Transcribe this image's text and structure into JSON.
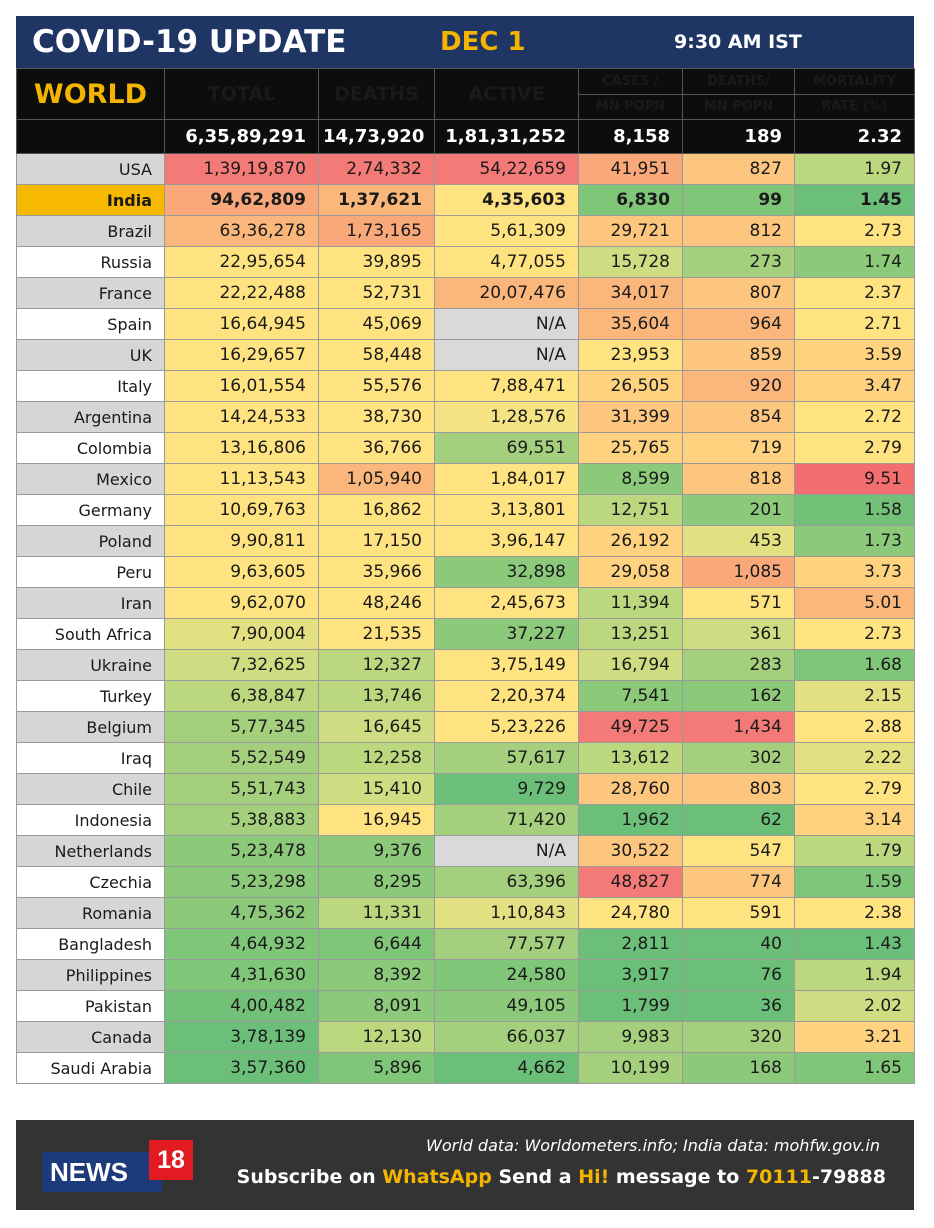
{
  "header": {
    "title": "COVID-19 UPDATE",
    "date": "DEC 1",
    "time": "9:30 AM IST"
  },
  "table": {
    "world_label": "WORLD",
    "columns": {
      "total": "TOTAL",
      "deaths": "DEATHS",
      "active": "ACTIVE",
      "cases_mn_1": "CASES /",
      "cases_mn_2": "MN POPN",
      "deaths_mn_1": "DEATHS/",
      "deaths_mn_2": "MN POPN",
      "mortality_1": "MORTALITY",
      "mortality_2": "RATE (%)"
    },
    "world_totals": {
      "total": "6,35,89,291",
      "deaths": "14,73,920",
      "active": "1,81,31,252",
      "cases_mn": "8,158",
      "deaths_mn": "189",
      "mortality": "2.32"
    }
  },
  "chart_data": {
    "type": "table",
    "title": "COVID-19 UPDATE",
    "columns": [
      "TOTAL",
      "DEATHS",
      "ACTIVE",
      "CASES / MN POPN",
      "DEATHS/ MN POPN",
      "MORTALITY RATE (%)"
    ],
    "rows": [
      {
        "country": "USA",
        "total": "1,39,19,870",
        "deaths": "2,74,332",
        "active": "54,22,659",
        "cases_mn": "41,951",
        "deaths_mn": "827",
        "mortality": "1.97",
        "colors": [
          "#f37a76",
          "#f37a76",
          "#f37a76",
          "#f9a87a",
          "#fcc67e",
          "#bcd87f"
        ]
      },
      {
        "country": "India",
        "total": "94,62,809",
        "deaths": "1,37,621",
        "active": "4,35,603",
        "cases_mn": "6,830",
        "deaths_mn": "99",
        "mortality": "1.45",
        "colors": [
          "#f9a87a",
          "#fbb67c",
          "#ffe380",
          "#80c679",
          "#80c679",
          "#6cbf78"
        ]
      },
      {
        "country": "Brazil",
        "total": "63,36,278",
        "deaths": "1,73,165",
        "active": "5,61,309",
        "cases_mn": "29,721",
        "deaths_mn": "812",
        "mortality": "2.73",
        "colors": [
          "#fbb67c",
          "#f9a87a",
          "#ffe380",
          "#fcc67e",
          "#fcc67e",
          "#ffe380"
        ]
      },
      {
        "country": "Russia",
        "total": "22,95,654",
        "deaths": "39,895",
        "active": "4,77,055",
        "cases_mn": "15,728",
        "deaths_mn": "273",
        "mortality": "1.74",
        "colors": [
          "#ffe380",
          "#ffe380",
          "#ffe380",
          "#cfdc81",
          "#a4d07e",
          "#8cc97a"
        ]
      },
      {
        "country": "France",
        "total": "22,22,488",
        "deaths": "52,731",
        "active": "20,07,476",
        "cases_mn": "34,017",
        "deaths_mn": "807",
        "mortality": "2.37",
        "colors": [
          "#ffe380",
          "#ffe380",
          "#fbb67c",
          "#fbb67c",
          "#fcc67e",
          "#ffe380"
        ]
      },
      {
        "country": "Spain",
        "total": "16,64,945",
        "deaths": "45,069",
        "active": "N/A",
        "cases_mn": "35,604",
        "deaths_mn": "964",
        "mortality": "2.71",
        "colors": [
          "#ffe380",
          "#ffe380",
          "#d9d9d9",
          "#fbb67c",
          "#fbb67c",
          "#ffe380"
        ]
      },
      {
        "country": "UK",
        "total": "16,29,657",
        "deaths": "58,448",
        "active": "N/A",
        "cases_mn": "23,953",
        "deaths_mn": "859",
        "mortality": "3.59",
        "colors": [
          "#ffe380",
          "#ffe380",
          "#d9d9d9",
          "#ffe380",
          "#fcc67e",
          "#fed27f"
        ]
      },
      {
        "country": "Italy",
        "total": "16,01,554",
        "deaths": "55,576",
        "active": "7,88,471",
        "cases_mn": "26,505",
        "deaths_mn": "920",
        "mortality": "3.47",
        "colors": [
          "#ffe380",
          "#ffe380",
          "#ffe380",
          "#fed27f",
          "#fbb67c",
          "#fed27f"
        ]
      },
      {
        "country": "Argentina",
        "total": "14,24,533",
        "deaths": "38,730",
        "active": "1,28,576",
        "cases_mn": "31,399",
        "deaths_mn": "854",
        "mortality": "2.72",
        "colors": [
          "#ffe380",
          "#ffe380",
          "#f5e383",
          "#fcc67e",
          "#fcc67e",
          "#ffe380"
        ]
      },
      {
        "country": "Colombia",
        "total": "13,16,806",
        "deaths": "36,766",
        "active": "69,551",
        "cases_mn": "25,765",
        "deaths_mn": "719",
        "mortality": "2.79",
        "colors": [
          "#ffe380",
          "#ffe380",
          "#a4d07e",
          "#fed27f",
          "#fed27f",
          "#ffe380"
        ]
      },
      {
        "country": "Mexico",
        "total": "11,13,543",
        "deaths": "1,05,940",
        "active": "1,84,017",
        "cases_mn": "8,599",
        "deaths_mn": "818",
        "mortality": "9.51",
        "colors": [
          "#ffe380",
          "#fbb67c",
          "#ffe380",
          "#8cc97a",
          "#fcc67e",
          "#f36e6e"
        ]
      },
      {
        "country": "Germany",
        "total": "10,69,763",
        "deaths": "16,862",
        "active": "3,13,801",
        "cases_mn": "12,751",
        "deaths_mn": "201",
        "mortality": "1.58",
        "colors": [
          "#ffe380",
          "#ffe380",
          "#ffe380",
          "#bcd87f",
          "#8cc97a",
          "#73c178"
        ]
      },
      {
        "country": "Poland",
        "total": "9,90,811",
        "deaths": "17,150",
        "active": "3,96,147",
        "cases_mn": "26,192",
        "deaths_mn": "453",
        "mortality": "1.73",
        "colors": [
          "#ffe380",
          "#ffe380",
          "#ffe380",
          "#fed27f",
          "#e3e082",
          "#8cc97a"
        ]
      },
      {
        "country": "Peru",
        "total": "9,63,605",
        "deaths": "35,966",
        "active": "32,898",
        "cases_mn": "29,058",
        "deaths_mn": "1,085",
        "mortality": "3.73",
        "colors": [
          "#ffe380",
          "#ffe380",
          "#8cc97a",
          "#fed27f",
          "#f9a87a",
          "#fed27f"
        ]
      },
      {
        "country": "Iran",
        "total": "9,62,070",
        "deaths": "48,246",
        "active": "2,45,673",
        "cases_mn": "11,394",
        "deaths_mn": "571",
        "mortality": "5.01",
        "colors": [
          "#ffe380",
          "#ffe380",
          "#ffe380",
          "#bcd87f",
          "#ffe380",
          "#fbb67c"
        ]
      },
      {
        "country": "South Africa",
        "total": "7,90,004",
        "deaths": "21,535",
        "active": "37,227",
        "cases_mn": "13,251",
        "deaths_mn": "361",
        "mortality": "2.73",
        "colors": [
          "#e3e082",
          "#ffe380",
          "#8cc97a",
          "#bcd87f",
          "#cfdc81",
          "#ffe380"
        ]
      },
      {
        "country": "Ukraine",
        "total": "7,32,625",
        "deaths": "12,327",
        "active": "3,75,149",
        "cases_mn": "16,794",
        "deaths_mn": "283",
        "mortality": "1.68",
        "colors": [
          "#cfdc81",
          "#bcd87f",
          "#ffe380",
          "#cfdc81",
          "#a4d07e",
          "#80c679"
        ]
      },
      {
        "country": "Turkey",
        "total": "6,38,847",
        "deaths": "13,746",
        "active": "2,20,374",
        "cases_mn": "7,541",
        "deaths_mn": "162",
        "mortality": "2.15",
        "colors": [
          "#bcd87f",
          "#bcd87f",
          "#ffe380",
          "#8cc97a",
          "#8cc97a",
          "#e3e082"
        ]
      },
      {
        "country": "Belgium",
        "total": "5,77,345",
        "deaths": "16,645",
        "active": "5,23,226",
        "cases_mn": "49,725",
        "deaths_mn": "1,434",
        "mortality": "2.88",
        "colors": [
          "#a4d07e",
          "#cfdc81",
          "#ffe380",
          "#f37a76",
          "#f37a76",
          "#ffe380"
        ]
      },
      {
        "country": "Iraq",
        "total": "5,52,549",
        "deaths": "12,258",
        "active": "57,617",
        "cases_mn": "13,612",
        "deaths_mn": "302",
        "mortality": "2.22",
        "colors": [
          "#a4d07e",
          "#bcd87f",
          "#a4d07e",
          "#bcd87f",
          "#a4d07e",
          "#e3e082"
        ]
      },
      {
        "country": "Chile",
        "total": "5,51,743",
        "deaths": "15,410",
        "active": "9,729",
        "cases_mn": "28,760",
        "deaths_mn": "803",
        "mortality": "2.79",
        "colors": [
          "#a4d07e",
          "#cfdc81",
          "#6cbf78",
          "#fcc67e",
          "#fcc67e",
          "#ffe380"
        ]
      },
      {
        "country": "Indonesia",
        "total": "5,38,883",
        "deaths": "16,945",
        "active": "71,420",
        "cases_mn": "1,962",
        "deaths_mn": "62",
        "mortality": "3.14",
        "colors": [
          "#a4d07e",
          "#ffe380",
          "#a4d07e",
          "#6cbf78",
          "#6cbf78",
          "#fed27f"
        ]
      },
      {
        "country": "Netherlands",
        "total": "5,23,478",
        "deaths": "9,376",
        "active": "N/A",
        "cases_mn": "30,522",
        "deaths_mn": "547",
        "mortality": "1.79",
        "colors": [
          "#8cc97a",
          "#8cc97a",
          "#d9d9d9",
          "#fcc67e",
          "#ffe380",
          "#bcd87f"
        ]
      },
      {
        "country": "Czechia",
        "total": "5,23,298",
        "deaths": "8,295",
        "active": "63,396",
        "cases_mn": "48,827",
        "deaths_mn": "774",
        "mortality": "1.59",
        "colors": [
          "#8cc97a",
          "#8cc97a",
          "#a4d07e",
          "#f37a76",
          "#fcc67e",
          "#80c679"
        ]
      },
      {
        "country": "Romania",
        "total": "4,75,362",
        "deaths": "11,331",
        "active": "1,10,843",
        "cases_mn": "24,780",
        "deaths_mn": "591",
        "mortality": "2.38",
        "colors": [
          "#8cc97a",
          "#bcd87f",
          "#e3e082",
          "#ffe380",
          "#ffe380",
          "#ffe380"
        ]
      },
      {
        "country": "Bangladesh",
        "total": "4,64,932",
        "deaths": "6,644",
        "active": "77,577",
        "cases_mn": "2,811",
        "deaths_mn": "40",
        "mortality": "1.43",
        "colors": [
          "#80c679",
          "#80c679",
          "#a4d07e",
          "#6cbf78",
          "#6cbf78",
          "#6cbf78"
        ]
      },
      {
        "country": "Philippines",
        "total": "4,31,630",
        "deaths": "8,392",
        "active": "24,580",
        "cases_mn": "3,917",
        "deaths_mn": "76",
        "mortality": "1.94",
        "colors": [
          "#80c679",
          "#8cc97a",
          "#80c679",
          "#6cbf78",
          "#6cbf78",
          "#bcd87f"
        ]
      },
      {
        "country": "Pakistan",
        "total": "4,00,482",
        "deaths": "8,091",
        "active": "49,105",
        "cases_mn": "1,799",
        "deaths_mn": "36",
        "mortality": "2.02",
        "colors": [
          "#73c178",
          "#8cc97a",
          "#8cc97a",
          "#6cbf78",
          "#6cbf78",
          "#cfdc81"
        ]
      },
      {
        "country": "Canada",
        "total": "3,78,139",
        "deaths": "12,130",
        "active": "66,037",
        "cases_mn": "9,983",
        "deaths_mn": "320",
        "mortality": "3.21",
        "colors": [
          "#6cbf78",
          "#bcd87f",
          "#a4d07e",
          "#a4d07e",
          "#a4d07e",
          "#fed27f"
        ]
      },
      {
        "country": "Saudi Arabia",
        "total": "3,57,360",
        "deaths": "5,896",
        "active": "4,662",
        "cases_mn": "10,199",
        "deaths_mn": "168",
        "mortality": "1.65",
        "colors": [
          "#6cbf78",
          "#80c679",
          "#6cbf78",
          "#a4d07e",
          "#8cc97a",
          "#80c679"
        ]
      }
    ]
  },
  "footer": {
    "logo_text": "NEWS",
    "logo_number": "18",
    "source": "World data: Worldometers.info; India data: mohfw.gov.in",
    "subscribe_1": "Subscribe on ",
    "whatsapp": "WhatsApp",
    "subscribe_2": " Send a ",
    "hi": "Hi!",
    "subscribe_3": " message to ",
    "phone_a": "70111",
    "phone_b": "-79888"
  },
  "colors": {
    "title_bar": "#1f3564",
    "header_bg": "#0d0d0d",
    "header_yellow": "#f4b400",
    "header_red": "#e53325",
    "india_highlight": "#f6b900",
    "footer_bg": "#333333",
    "logo_blue": "#1d3a7a",
    "logo_red": "#e21b22"
  }
}
